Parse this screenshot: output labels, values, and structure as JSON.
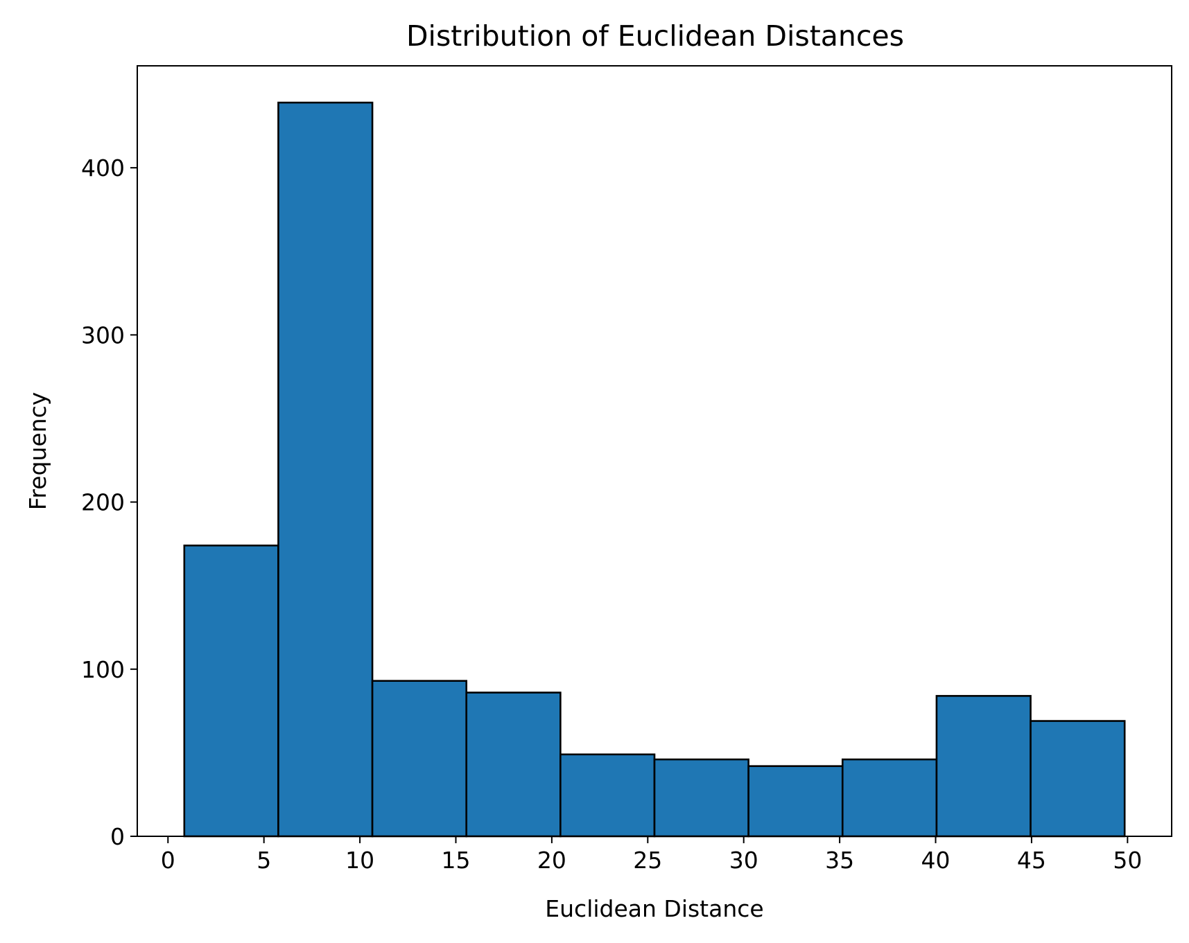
{
  "chart_data": {
    "type": "bar",
    "title": "Distribution of Euclidean Distances",
    "xlabel": "Euclidean Distance",
    "ylabel": "Frequency",
    "bin_edges": [
      0.85,
      5.75,
      10.65,
      15.55,
      20.45,
      25.35,
      30.25,
      35.15,
      40.05,
      44.95,
      49.85
    ],
    "values": [
      174,
      439,
      93,
      86,
      49,
      46,
      42,
      46,
      84,
      69
    ],
    "xlim": [
      -1.6,
      52.3
    ],
    "ylim": [
      0,
      461
    ],
    "xticks": [
      0,
      5,
      10,
      15,
      20,
      25,
      30,
      35,
      40,
      45,
      50
    ],
    "yticks": [
      0,
      100,
      200,
      300,
      400
    ],
    "bar_color": "#1f77b4",
    "edge_color": "#000000",
    "grid": false,
    "legend": "none"
  }
}
